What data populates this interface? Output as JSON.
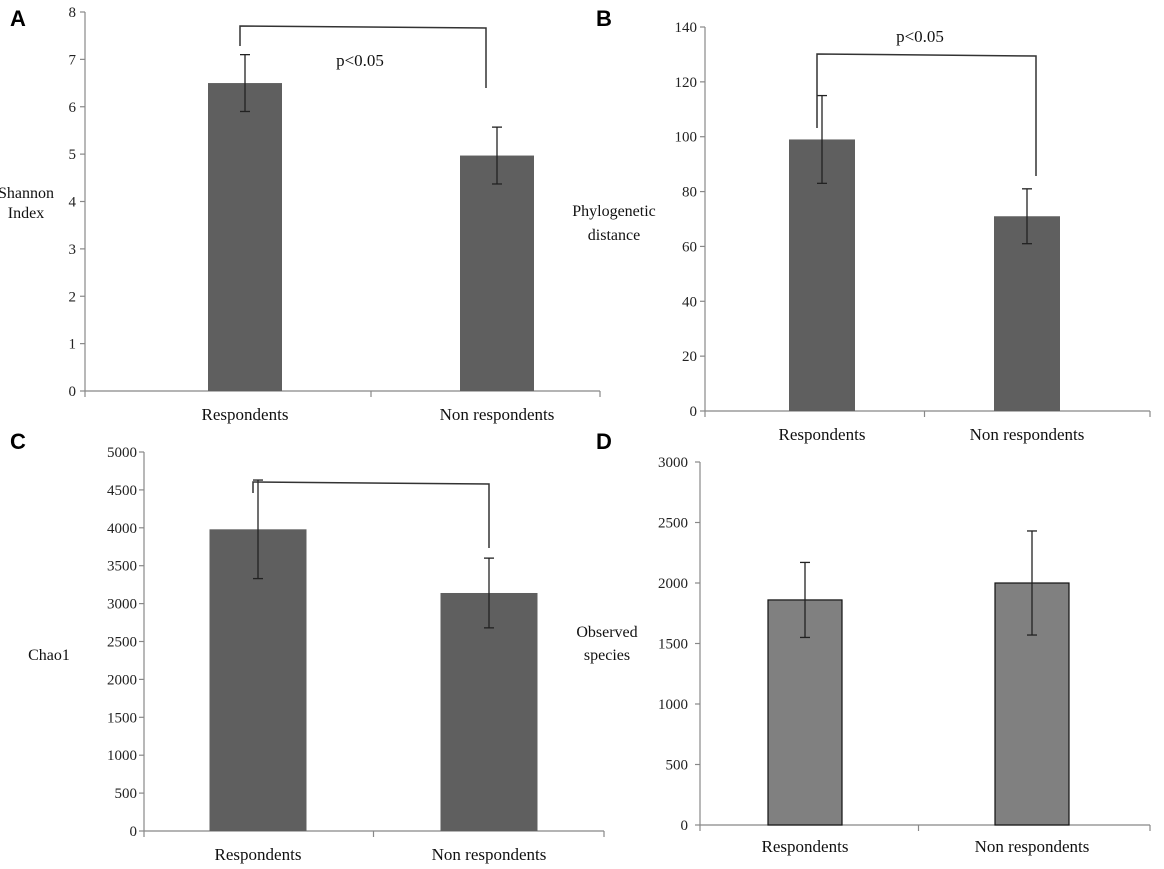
{
  "chart_data": [
    {
      "type": "bar",
      "panel": "A",
      "categories": [
        "Respondents",
        "Non respondents"
      ],
      "values": [
        6.5,
        4.97
      ],
      "errors": [
        0.6,
        0.6
      ],
      "ylabel": [
        "Shannon",
        "Index"
      ],
      "ylim": [
        0,
        8
      ],
      "yticks": [
        0,
        1,
        2,
        3,
        4,
        5,
        6,
        7,
        8
      ],
      "annotation": "p<0.05",
      "bar_color": "#5f5f5f",
      "bar_stroke": "none"
    },
    {
      "type": "bar",
      "panel": "B",
      "categories": [
        "Respondents",
        "Non respondents"
      ],
      "values": [
        99,
        71
      ],
      "errors": [
        16,
        10
      ],
      "ylabel": [
        "Phylogenetic",
        "distance"
      ],
      "ylim": [
        0,
        140
      ],
      "yticks": [
        0,
        20,
        40,
        60,
        80,
        100,
        120,
        140
      ],
      "annotation": "p<0.05",
      "bar_color": "#5f5f5f",
      "bar_stroke": "none"
    },
    {
      "type": "bar",
      "panel": "C",
      "categories": [
        "Respondents",
        "Non respondents"
      ],
      "values": [
        3980,
        3140
      ],
      "errors": [
        650,
        460
      ],
      "ylabel": [
        "Chao1"
      ],
      "ylim": [
        0,
        5000
      ],
      "yticks": [
        0,
        500,
        1000,
        1500,
        2000,
        2500,
        3000,
        3500,
        4000,
        4500,
        5000
      ],
      "annotation": "",
      "bar_color": "#5f5f5f",
      "bar_stroke": "none"
    },
    {
      "type": "bar",
      "panel": "D",
      "categories": [
        "Respondents",
        "Non respondents"
      ],
      "values": [
        1860,
        2000
      ],
      "errors": [
        310,
        430
      ],
      "ylabel": [
        "Observed",
        "species"
      ],
      "ylim": [
        0,
        3000
      ],
      "yticks": [
        0,
        500,
        1000,
        1500,
        2000,
        2500,
        3000
      ],
      "annotation": "",
      "bar_color": "#808080",
      "bar_stroke": "#111111"
    }
  ]
}
